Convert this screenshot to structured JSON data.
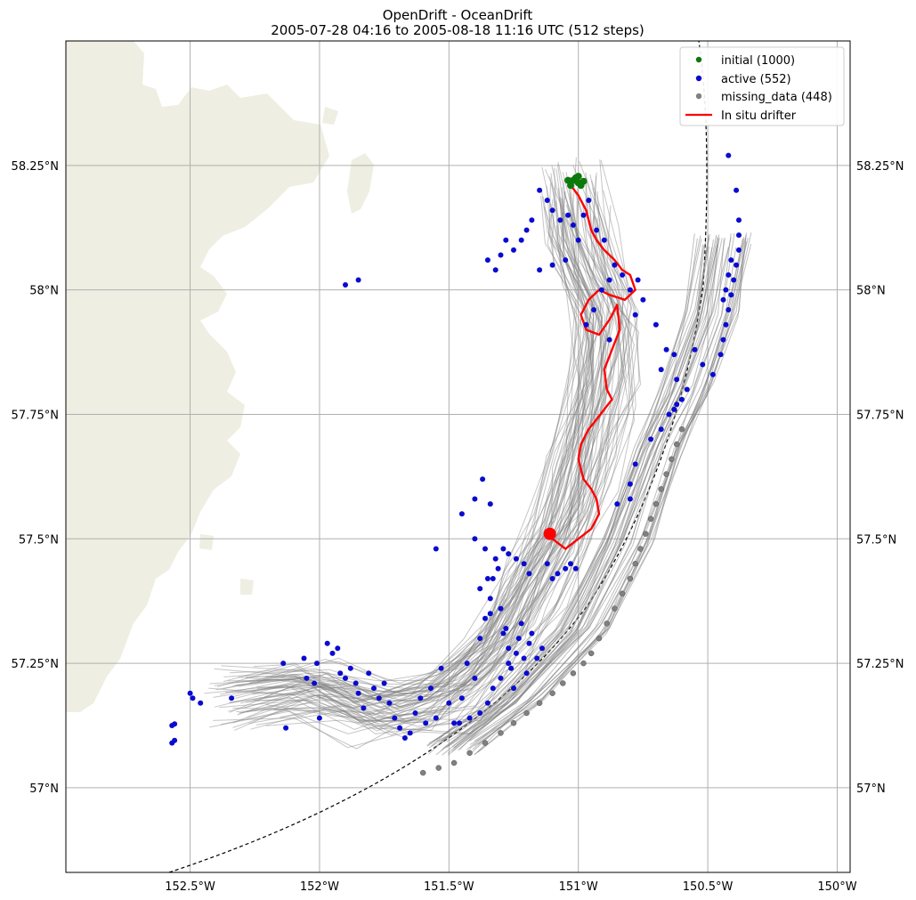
{
  "chart_data": {
    "type": "scatter",
    "title": "OpenDrift - OceanDrift",
    "subtitle": "2005-07-28 04:16 to 2005-08-18 11:16 UTC (512 steps)",
    "xlim": [
      -152.98,
      -149.95
    ],
    "ylim": [
      56.83,
      58.5
    ],
    "x_ticks": [
      {
        "value": -152.5,
        "label": "152.5°W"
      },
      {
        "value": -152.0,
        "label": "152°W"
      },
      {
        "value": -151.5,
        "label": "151.5°W"
      },
      {
        "value": -151.0,
        "label": "151°W"
      },
      {
        "value": -150.5,
        "label": "150.5°W"
      },
      {
        "value": -150.0,
        "label": "150°W"
      }
    ],
    "y_ticks": [
      {
        "value": 57.0,
        "label": "57°N"
      },
      {
        "value": 57.25,
        "label": "57.25°N"
      },
      {
        "value": 57.5,
        "label": "57.5°N"
      },
      {
        "value": 57.75,
        "label": "57.75°N"
      },
      {
        "value": 58.0,
        "label": "58°N"
      },
      {
        "value": 58.25,
        "label": "58.25°N"
      }
    ],
    "grid": true,
    "legend_position": "top-right",
    "colors": {
      "land": "#eeeee2",
      "grid": "#b0b0b0",
      "trajectory": "#808080",
      "initial": "#0b7a0b",
      "active": "#0a0ad0",
      "missing": "#808080",
      "drifter": "#ff0000"
    },
    "series": [
      {
        "name": "initial (1000)",
        "marker": "point",
        "color": "#0b7a0b",
        "points": [
          [
            -151.02,
            58.22
          ],
          [
            -151.0,
            58.215
          ],
          [
            -151.01,
            58.225
          ],
          [
            -151.03,
            58.21
          ],
          [
            -150.99,
            58.21
          ],
          [
            -151.0,
            58.228
          ],
          [
            -151.04,
            58.22
          ],
          [
            -150.98,
            58.218
          ]
        ]
      },
      {
        "name": "active (552)",
        "marker": "point",
        "color": "#0a0ad0",
        "points": [
          [
            -152.57,
            57.125
          ],
          [
            -152.56,
            57.128
          ],
          [
            -152.57,
            57.09
          ],
          [
            -152.56,
            57.095
          ],
          [
            -152.5,
            57.19
          ],
          [
            -152.49,
            57.18
          ],
          [
            -152.46,
            57.17
          ],
          [
            -152.34,
            57.18
          ],
          [
            -152.14,
            57.25
          ],
          [
            -152.13,
            57.12
          ],
          [
            -152.06,
            57.26
          ],
          [
            -152.05,
            57.22
          ],
          [
            -152.02,
            57.21
          ],
          [
            -152.01,
            57.25
          ],
          [
            -152.0,
            57.14
          ],
          [
            -151.97,
            57.29
          ],
          [
            -151.95,
            57.27
          ],
          [
            -151.93,
            57.28
          ],
          [
            -151.92,
            57.23
          ],
          [
            -151.9,
            57.22
          ],
          [
            -151.88,
            57.24
          ],
          [
            -151.86,
            57.21
          ],
          [
            -151.85,
            57.19
          ],
          [
            -151.83,
            57.16
          ],
          [
            -151.81,
            57.23
          ],
          [
            -151.79,
            57.2
          ],
          [
            -151.77,
            57.18
          ],
          [
            -151.75,
            57.21
          ],
          [
            -151.73,
            57.17
          ],
          [
            -151.71,
            57.14
          ],
          [
            -151.69,
            57.12
          ],
          [
            -151.67,
            57.1
          ],
          [
            -151.65,
            57.11
          ],
          [
            -151.63,
            57.15
          ],
          [
            -151.61,
            57.18
          ],
          [
            -151.59,
            57.13
          ],
          [
            -151.57,
            57.2
          ],
          [
            -151.55,
            57.14
          ],
          [
            -151.53,
            57.24
          ],
          [
            -151.5,
            57.17
          ],
          [
            -151.48,
            57.13
          ],
          [
            -151.45,
            57.18
          ],
          [
            -151.43,
            57.25
          ],
          [
            -151.4,
            57.22
          ],
          [
            -151.38,
            57.3
          ],
          [
            -151.36,
            57.34
          ],
          [
            -151.34,
            57.38
          ],
          [
            -151.33,
            57.42
          ],
          [
            -151.31,
            57.44
          ],
          [
            -151.3,
            57.36
          ],
          [
            -151.28,
            57.32
          ],
          [
            -151.27,
            57.28
          ],
          [
            -151.26,
            57.24
          ],
          [
            -151.25,
            57.2
          ],
          [
            -151.24,
            57.27
          ],
          [
            -151.23,
            57.3
          ],
          [
            -151.22,
            57.33
          ],
          [
            -151.21,
            57.26
          ],
          [
            -151.2,
            57.23
          ],
          [
            -151.19,
            57.29
          ],
          [
            -151.18,
            57.31
          ],
          [
            -151.16,
            57.26
          ],
          [
            -151.14,
            57.28
          ],
          [
            -151.12,
            57.45
          ],
          [
            -151.1,
            57.42
          ],
          [
            -151.08,
            57.43
          ],
          [
            -151.05,
            57.44
          ],
          [
            -151.03,
            57.45
          ],
          [
            -151.01,
            57.44
          ],
          [
            -151.32,
            57.46
          ],
          [
            -151.29,
            57.48
          ],
          [
            -151.27,
            57.47
          ],
          [
            -151.24,
            57.46
          ],
          [
            -151.21,
            57.45
          ],
          [
            -151.19,
            57.43
          ],
          [
            -151.36,
            57.48
          ],
          [
            -151.35,
            57.42
          ],
          [
            -151.38,
            57.4
          ],
          [
            -151.34,
            57.35
          ],
          [
            -151.29,
            57.31
          ],
          [
            -151.27,
            57.25
          ],
          [
            -151.3,
            57.22
          ],
          [
            -151.33,
            57.2
          ],
          [
            -151.35,
            57.17
          ],
          [
            -151.38,
            57.15
          ],
          [
            -151.42,
            57.14
          ],
          [
            -151.46,
            57.13
          ],
          [
            -151.55,
            57.48
          ],
          [
            -151.45,
            57.55
          ],
          [
            -151.4,
            57.58
          ],
          [
            -151.37,
            57.62
          ],
          [
            -151.34,
            57.57
          ],
          [
            -151.4,
            57.5
          ],
          [
            -150.85,
            57.57
          ],
          [
            -150.8,
            57.58
          ],
          [
            -150.8,
            57.61
          ],
          [
            -150.78,
            57.65
          ],
          [
            -150.72,
            57.7
          ],
          [
            -150.68,
            57.72
          ],
          [
            -150.65,
            57.75
          ],
          [
            -150.63,
            57.76
          ],
          [
            -150.62,
            57.77
          ],
          [
            -150.6,
            57.78
          ],
          [
            -150.58,
            57.8
          ],
          [
            -150.62,
            57.82
          ],
          [
            -150.68,
            57.84
          ],
          [
            -150.66,
            57.88
          ],
          [
            -150.63,
            57.87
          ],
          [
            -150.55,
            57.88
          ],
          [
            -150.52,
            57.85
          ],
          [
            -150.48,
            57.83
          ],
          [
            -150.45,
            57.87
          ],
          [
            -150.44,
            57.9
          ],
          [
            -150.43,
            57.93
          ],
          [
            -150.42,
            57.96
          ],
          [
            -150.41,
            57.99
          ],
          [
            -150.4,
            58.02
          ],
          [
            -150.39,
            58.05
          ],
          [
            -150.38,
            58.08
          ],
          [
            -150.38,
            58.11
          ],
          [
            -150.38,
            58.14
          ],
          [
            -150.39,
            58.2
          ],
          [
            -150.42,
            58.27
          ],
          [
            -150.41,
            58.06
          ],
          [
            -150.42,
            58.03
          ],
          [
            -150.43,
            58.0
          ],
          [
            -150.44,
            57.98
          ],
          [
            -150.7,
            57.93
          ],
          [
            -150.78,
            57.95
          ],
          [
            -150.88,
            57.9
          ],
          [
            -150.75,
            57.98
          ],
          [
            -150.77,
            58.02
          ],
          [
            -150.8,
            58.0
          ],
          [
            -150.83,
            58.03
          ],
          [
            -150.86,
            58.05
          ],
          [
            -150.88,
            58.02
          ],
          [
            -150.91,
            58.0
          ],
          [
            -150.94,
            57.96
          ],
          [
            -150.97,
            57.93
          ],
          [
            -151.0,
            58.1
          ],
          [
            -151.02,
            58.13
          ],
          [
            -151.04,
            58.15
          ],
          [
            -151.07,
            58.14
          ],
          [
            -151.1,
            58.16
          ],
          [
            -151.12,
            58.18
          ],
          [
            -151.15,
            58.2
          ],
          [
            -151.18,
            58.14
          ],
          [
            -151.2,
            58.12
          ],
          [
            -151.22,
            58.1
          ],
          [
            -151.25,
            58.08
          ],
          [
            -151.28,
            58.1
          ],
          [
            -151.3,
            58.07
          ],
          [
            -151.32,
            58.04
          ],
          [
            -151.35,
            58.06
          ],
          [
            -151.05,
            58.06
          ],
          [
            -151.1,
            58.05
          ],
          [
            -151.15,
            58.04
          ],
          [
            -151.9,
            58.01
          ],
          [
            -151.85,
            58.02
          ],
          [
            -150.96,
            58.18
          ],
          [
            -150.98,
            58.15
          ],
          [
            -150.93,
            58.12
          ],
          [
            -150.9,
            58.1
          ]
        ]
      },
      {
        "name": "missing_data (448)",
        "marker": "point",
        "color": "#808080",
        "points": [
          [
            -150.6,
            57.72
          ],
          [
            -150.62,
            57.69
          ],
          [
            -150.64,
            57.66
          ],
          [
            -150.66,
            57.63
          ],
          [
            -150.68,
            57.6
          ],
          [
            -150.7,
            57.57
          ],
          [
            -150.72,
            57.54
          ],
          [
            -150.74,
            57.51
          ],
          [
            -150.76,
            57.48
          ],
          [
            -150.78,
            57.45
          ],
          [
            -150.8,
            57.42
          ],
          [
            -150.83,
            57.39
          ],
          [
            -150.86,
            57.36
          ],
          [
            -150.89,
            57.33
          ],
          [
            -150.92,
            57.3
          ],
          [
            -150.95,
            57.27
          ],
          [
            -150.98,
            57.25
          ],
          [
            -151.02,
            57.23
          ],
          [
            -151.06,
            57.21
          ],
          [
            -151.1,
            57.19
          ],
          [
            -151.15,
            57.17
          ],
          [
            -151.2,
            57.15
          ],
          [
            -151.25,
            57.13
          ],
          [
            -151.3,
            57.11
          ],
          [
            -151.36,
            57.09
          ],
          [
            -151.42,
            57.07
          ],
          [
            -151.48,
            57.05
          ],
          [
            -151.54,
            57.04
          ],
          [
            -151.6,
            57.03
          ]
        ]
      },
      {
        "name": "In situ drifter",
        "marker": "line",
        "color": "#ff0000",
        "points": [
          [
            -151.03,
            58.21
          ],
          [
            -151.0,
            58.19
          ],
          [
            -150.97,
            58.16
          ],
          [
            -150.95,
            58.12
          ],
          [
            -150.93,
            58.1
          ],
          [
            -150.9,
            58.08
          ],
          [
            -150.86,
            58.06
          ],
          [
            -150.83,
            58.04
          ],
          [
            -150.8,
            58.03
          ],
          [
            -150.78,
            58.0
          ],
          [
            -150.82,
            57.98
          ],
          [
            -150.88,
            57.99
          ],
          [
            -150.92,
            58.0
          ],
          [
            -150.96,
            57.98
          ],
          [
            -150.99,
            57.95
          ],
          [
            -150.97,
            57.92
          ],
          [
            -150.92,
            57.91
          ],
          [
            -150.88,
            57.94
          ],
          [
            -150.85,
            57.97
          ],
          [
            -150.84,
            57.92
          ],
          [
            -150.87,
            57.88
          ],
          [
            -150.9,
            57.84
          ],
          [
            -150.89,
            57.8
          ],
          [
            -150.87,
            57.78
          ],
          [
            -150.9,
            57.76
          ],
          [
            -150.93,
            57.74
          ],
          [
            -150.96,
            57.72
          ],
          [
            -150.99,
            57.69
          ],
          [
            -151.0,
            57.66
          ],
          [
            -150.98,
            57.62
          ],
          [
            -150.95,
            57.6
          ],
          [
            -150.93,
            57.58
          ],
          [
            -150.92,
            57.55
          ],
          [
            -150.95,
            57.52
          ],
          [
            -151.0,
            57.5
          ],
          [
            -151.05,
            57.48
          ],
          [
            -151.1,
            57.5
          ],
          [
            -151.11,
            57.51
          ]
        ]
      }
    ]
  }
}
